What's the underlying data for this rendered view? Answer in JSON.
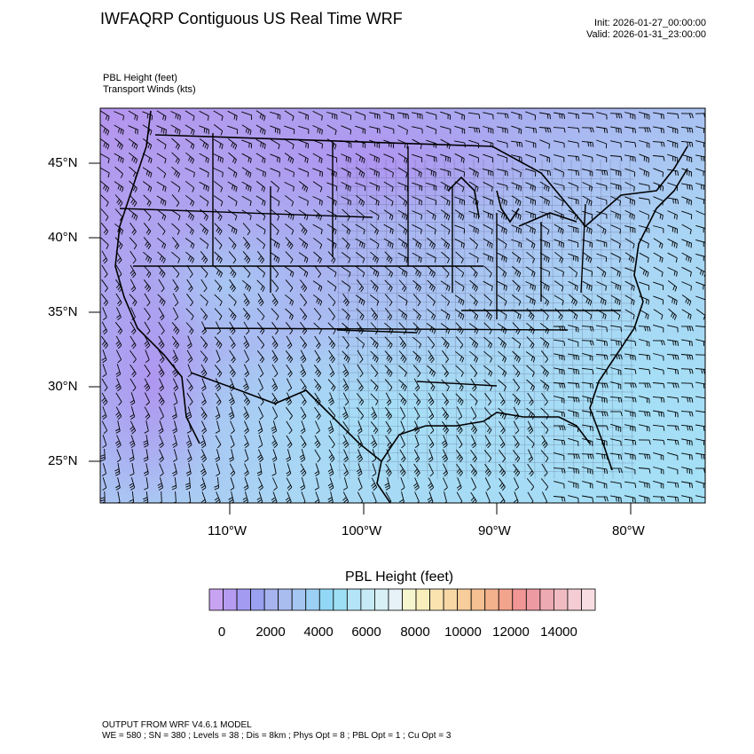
{
  "header": {
    "title": "IWFAQRP Contiguous US Real Time WRF",
    "init": "Init: 2026-01-27_00:00:00",
    "valid": "Valid: 2026-01-31_23:00:00",
    "field_line_1": "PBL Height   (feet)",
    "field_line_2": "Transport Winds   (kts)"
  },
  "map": {
    "lat_labels": [
      "45°N",
      "40°N",
      "35°N",
      "30°N",
      "25°N"
    ],
    "lon_labels": [
      "110°W",
      "100°W",
      "90°W",
      "80°W"
    ]
  },
  "colorbar": {
    "title": "PBL Height  (feet)",
    "tick_labels": [
      "0",
      "2000",
      "4000",
      "6000",
      "8000",
      "10000",
      "12000",
      "14000"
    ],
    "colors": [
      "#c7a3f1",
      "#b59cf0",
      "#a39bf2",
      "#9aa1f0",
      "#a6b3ee",
      "#a9bdef",
      "#a6c6f2",
      "#9ccff4",
      "#92d8f6",
      "#9ddff5",
      "#b3e5f7",
      "#c7ebf6",
      "#d7f0f5",
      "#e6f2f7",
      "#f6f6cf",
      "#f8eebc",
      "#fae3af",
      "#f7d8a5",
      "#f7cd9b",
      "#f6c092",
      "#f4b28c",
      "#f3a48c",
      "#f19695",
      "#ed9aa3",
      "#eeaab2",
      "#f0bcc2",
      "#f4cdd3",
      "#f8dee2"
    ]
  },
  "footer": {
    "line_1": "OUTPUT FROM WRF V4.6.1 MODEL",
    "line_2": "WE = 580 ; SN = 380 ; Levels = 38 ; Dis = 8km ; Phys Opt = 8 ; PBL Opt = 1 ; Cu Opt = 3"
  }
}
